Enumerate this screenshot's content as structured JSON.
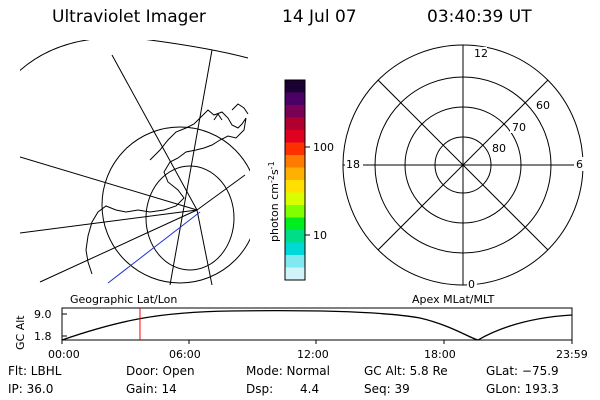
{
  "header": {
    "instrument": "Ultraviolet Imager",
    "date": "14 Jul 07",
    "time": "03:40:39 UT"
  },
  "colorbar": {
    "unit_label": "photon cm",
    "unit_sup1": "-2",
    "unit_mid": "s",
    "unit_sup2": "-1",
    "tick_100": "100",
    "tick_10": "10",
    "colors": [
      "#1a0033",
      "#4b0066",
      "#7a0055",
      "#b00030",
      "#e00020",
      "#ff3000",
      "#ff7a00",
      "#ffb000",
      "#ffe000",
      "#d8ff00",
      "#80ff00",
      "#00ee20",
      "#00dd88",
      "#00d8d8",
      "#80e8f0",
      "#d0f4f8"
    ]
  },
  "left_map": {
    "label": "Geographic Lat/Lon"
  },
  "right_polar": {
    "label": "Apex MLat/MLT",
    "mlt_12": "12",
    "mlt_18": "18",
    "mlt_6": "6",
    "mlt_0": "0",
    "lat_60": "60",
    "lat_70": "70",
    "lat_80": "80"
  },
  "timeline": {
    "ylabel": "GC Alt",
    "y_top": "9.0",
    "y_bottom": "1.8",
    "ticks": [
      "00:00",
      "06:00",
      "12:00",
      "18:00",
      "23:59"
    ],
    "marker_time": "03:40",
    "marker_color": "#ff0000"
  },
  "info": {
    "row1": {
      "filter": "Flt: LBHL",
      "door": "Door: Open",
      "mode": "Mode: Normal",
      "gc_alt": "GC Alt: 5.8 Re",
      "glat": "GLat: −75.9"
    },
    "row2": {
      "ip": "IP: 36.0",
      "gain": "Gain: 14",
      "dsp_label": "Dsp:",
      "dsp_value": "4.4",
      "seq": "Seq: 39",
      "glon": "GLon: 193.3"
    }
  }
}
